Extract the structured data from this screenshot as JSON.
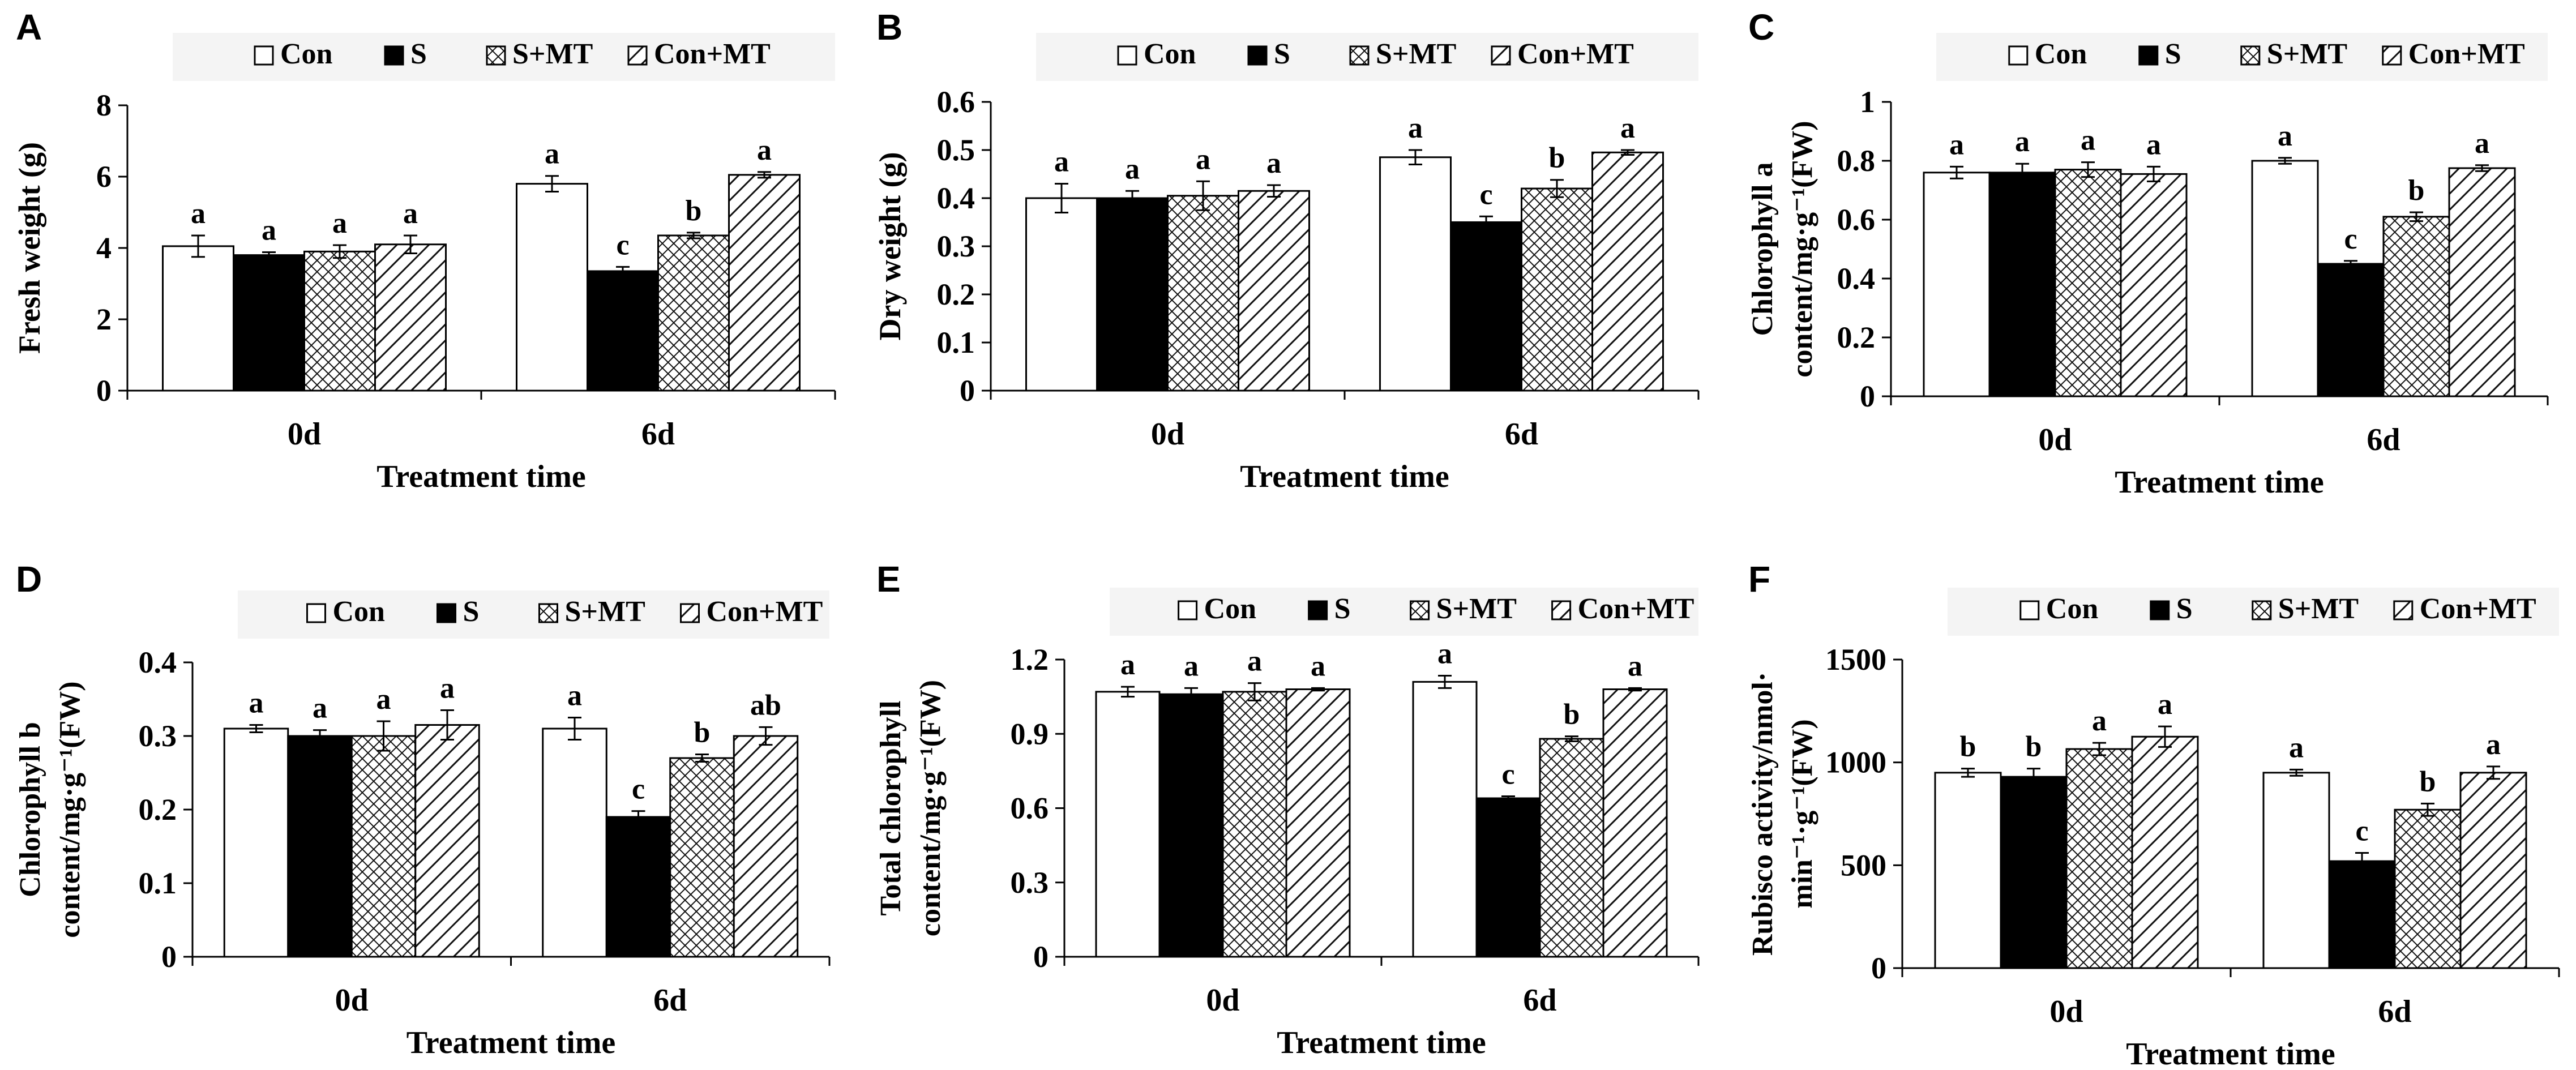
{
  "figure": {
    "legend_labels": [
      "Con",
      "S",
      "S+MT",
      "Con+MT"
    ],
    "categories": [
      "0d",
      "6d"
    ],
    "xlabel": "Treatment time"
  },
  "chart_data": [
    {
      "panel": "A",
      "type": "bar",
      "title": "",
      "xlabel": "Treatment time",
      "ylabel": "Fresh weight (g)",
      "ylim": [
        0,
        8
      ],
      "yticks": [
        "0",
        "2",
        "4",
        "6",
        "8"
      ],
      "categories": [
        "0d",
        "6d"
      ],
      "series": [
        {
          "name": "Con",
          "values": [
            4.05,
            5.8
          ],
          "errors": [
            0.3,
            0.22
          ],
          "letters": [
            "a",
            "a"
          ]
        },
        {
          "name": "S",
          "values": [
            3.8,
            3.35
          ],
          "errors": [
            0.08,
            0.12
          ],
          "letters": [
            "a",
            "c"
          ]
        },
        {
          "name": "S+MT",
          "values": [
            3.9,
            4.35
          ],
          "errors": [
            0.18,
            0.08
          ],
          "letters": [
            "a",
            "b"
          ]
        },
        {
          "name": "Con+MT",
          "values": [
            4.1,
            6.05
          ],
          "errors": [
            0.25,
            0.08
          ],
          "letters": [
            "a",
            "a"
          ]
        }
      ]
    },
    {
      "panel": "B",
      "type": "bar",
      "title": "",
      "xlabel": "Treatment time",
      "ylabel": "Dry  weight (g)",
      "ylim": [
        0,
        0.6
      ],
      "yticks": [
        "0",
        "0.1",
        "0.2",
        "0.3",
        "0.4",
        "0.5",
        "0.6"
      ],
      "categories": [
        "0d",
        "6d"
      ],
      "series": [
        {
          "name": "Con",
          "values": [
            0.4,
            0.485
          ],
          "errors": [
            0.03,
            0.015
          ],
          "letters": [
            "a",
            "a"
          ]
        },
        {
          "name": "S",
          "values": [
            0.4,
            0.35
          ],
          "errors": [
            0.015,
            0.012
          ],
          "letters": [
            "a",
            "c"
          ]
        },
        {
          "name": "S+MT",
          "values": [
            0.405,
            0.42
          ],
          "errors": [
            0.03,
            0.018
          ],
          "letters": [
            "a",
            "b"
          ]
        },
        {
          "name": "Con+MT",
          "values": [
            0.415,
            0.495
          ],
          "errors": [
            0.012,
            0.005
          ],
          "letters": [
            "a",
            "a"
          ]
        }
      ]
    },
    {
      "panel": "C",
      "type": "bar",
      "title": "",
      "xlabel": "Treatment time",
      "ylabel_lines": [
        "Chlorophyll a",
        "content/mg·g⁻¹(FW)"
      ],
      "ylim": [
        0,
        1
      ],
      "yticks": [
        "0",
        "0.2",
        "0.4",
        "0.6",
        "0.8",
        "1"
      ],
      "categories": [
        "0d",
        "6d"
      ],
      "series": [
        {
          "name": "Con",
          "values": [
            0.76,
            0.8
          ],
          "errors": [
            0.02,
            0.01
          ],
          "letters": [
            "a",
            "a"
          ]
        },
        {
          "name": "S",
          "values": [
            0.76,
            0.45
          ],
          "errors": [
            0.03,
            0.01
          ],
          "letters": [
            "a",
            "c"
          ]
        },
        {
          "name": "S+MT",
          "values": [
            0.77,
            0.61
          ],
          "errors": [
            0.025,
            0.015
          ],
          "letters": [
            "a",
            "b"
          ]
        },
        {
          "name": "Con+MT",
          "values": [
            0.755,
            0.775
          ],
          "errors": [
            0.025,
            0.01
          ],
          "letters": [
            "a",
            "a"
          ]
        }
      ]
    },
    {
      "panel": "D",
      "type": "bar",
      "title": "",
      "xlabel": "Treatment time",
      "ylabel_lines": [
        "Chlorophyll b",
        "content/mg·g⁻¹(FW)"
      ],
      "ylim": [
        0,
        0.4
      ],
      "yticks": [
        "0",
        "0.1",
        "0.2",
        "0.3",
        "0.4"
      ],
      "categories": [
        "0d",
        "6d"
      ],
      "series": [
        {
          "name": "Con",
          "values": [
            0.31,
            0.31
          ],
          "errors": [
            0.005,
            0.015
          ],
          "letters": [
            "a",
            "a"
          ]
        },
        {
          "name": "S",
          "values": [
            0.3,
            0.19
          ],
          "errors": [
            0.008,
            0.008
          ],
          "letters": [
            "a",
            "c"
          ]
        },
        {
          "name": "S+MT",
          "values": [
            0.3,
            0.27
          ],
          "errors": [
            0.02,
            0.005
          ],
          "letters": [
            "a",
            "b"
          ]
        },
        {
          "name": "Con+MT",
          "values": [
            0.315,
            0.3
          ],
          "errors": [
            0.02,
            0.012
          ],
          "letters": [
            "a",
            "ab"
          ]
        }
      ]
    },
    {
      "panel": "E",
      "type": "bar",
      "title": "",
      "xlabel": "Treatment time",
      "ylabel_lines": [
        "Total chlorophyll",
        "content/mg·g⁻¹(FW)"
      ],
      "ylim": [
        0,
        1.2
      ],
      "yticks": [
        "0",
        "0.3",
        "0.6",
        "0.9",
        "1.2"
      ],
      "categories": [
        "0d",
        "6d"
      ],
      "series": [
        {
          "name": "Con",
          "values": [
            1.07,
            1.11
          ],
          "errors": [
            0.02,
            0.025
          ],
          "letters": [
            "a",
            "a"
          ]
        },
        {
          "name": "S",
          "values": [
            1.06,
            0.64
          ],
          "errors": [
            0.025,
            0.008
          ],
          "letters": [
            "a",
            "c"
          ]
        },
        {
          "name": "S+MT",
          "values": [
            1.07,
            0.88
          ],
          "errors": [
            0.035,
            0.01
          ],
          "letters": [
            "a",
            "b"
          ]
        },
        {
          "name": "Con+MT",
          "values": [
            1.08,
            1.08
          ],
          "errors": [
            0.005,
            0.005
          ],
          "letters": [
            "a",
            "a"
          ]
        }
      ]
    },
    {
      "panel": "F",
      "type": "bar",
      "title": "",
      "xlabel": "Treatment time",
      "ylabel_lines": [
        "Rubisco activity/nmol·",
        "min⁻¹·g⁻¹(FW)"
      ],
      "ylim": [
        0,
        1500
      ],
      "yticks": [
        "0",
        "500",
        "1000",
        "1500"
      ],
      "categories": [
        "0d",
        "6d"
      ],
      "series": [
        {
          "name": "Con",
          "values": [
            950,
            950
          ],
          "errors": [
            20,
            15
          ],
          "letters": [
            "b",
            "a"
          ]
        },
        {
          "name": "S",
          "values": [
            930,
            520
          ],
          "errors": [
            40,
            40
          ],
          "letters": [
            "b",
            "c"
          ]
        },
        {
          "name": "S+MT",
          "values": [
            1065,
            770
          ],
          "errors": [
            30,
            30
          ],
          "letters": [
            "a",
            "b"
          ]
        },
        {
          "name": "Con+MT",
          "values": [
            1125,
            950
          ],
          "errors": [
            50,
            30
          ],
          "letters": [
            "a",
            "a"
          ]
        }
      ]
    }
  ]
}
